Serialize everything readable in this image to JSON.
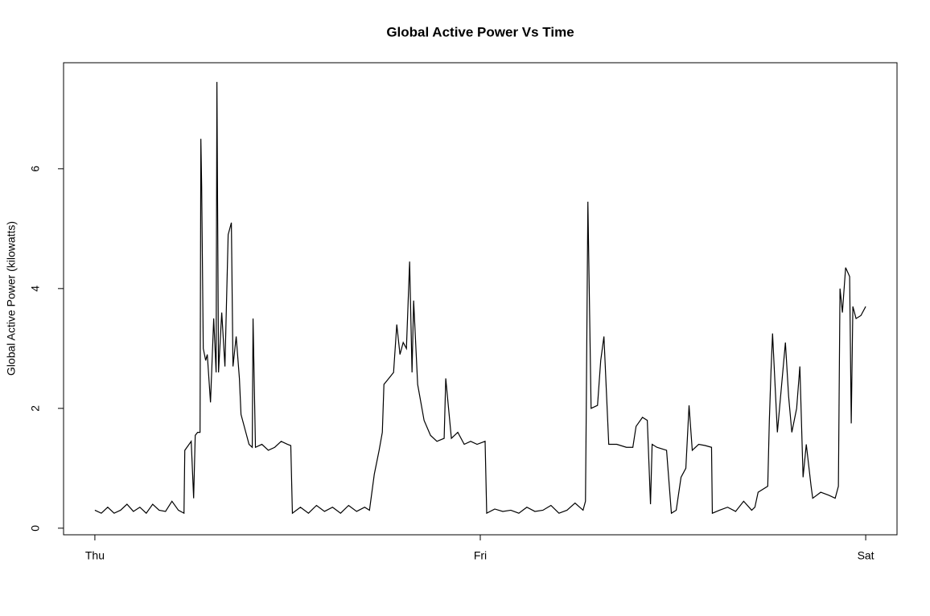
{
  "chart_data": {
    "type": "line",
    "title": "Global Active Power Vs Time",
    "y_label": "Global Active Power (kilowatts)",
    "color": "#000000",
    "xlim": [
      -1.95,
      49.95
    ],
    "xticks": [
      {
        "value": 0,
        "label": "Thu"
      },
      {
        "value": 24,
        "label": "Fri"
      },
      {
        "value": 48,
        "label": "Sat"
      }
    ],
    "ylim": [
      -0.11,
      7.77
    ],
    "yticks": [
      0,
      2,
      4,
      6
    ],
    "x": [
      0,
      0.4,
      0.8,
      1.2,
      1.6,
      2.0,
      2.4,
      2.8,
      3.2,
      3.6,
      4.0,
      4.4,
      4.8,
      5.2,
      5.55,
      5.6,
      6.0,
      6.15,
      6.25,
      6.4,
      6.55,
      6.6,
      6.65,
      6.75,
      6.9,
      7.0,
      7.2,
      7.4,
      7.55,
      7.6,
      7.7,
      7.9,
      8.1,
      8.3,
      8.5,
      8.6,
      8.8,
      9.0,
      9.1,
      9.4,
      9.6,
      9.8,
      9.85,
      10.0,
      10.4,
      10.8,
      11.2,
      11.6,
      12.0,
      12.2,
      12.3,
      12.8,
      13.3,
      13.8,
      14.3,
      14.8,
      15.3,
      15.8,
      16.3,
      16.8,
      17.1,
      17.4,
      17.7,
      17.9,
      18.0,
      18.3,
      18.6,
      18.8,
      19.0,
      19.2,
      19.4,
      19.6,
      19.75,
      19.85,
      20.1,
      20.5,
      20.9,
      21.3,
      21.75,
      21.85,
      22.2,
      22.6,
      23.0,
      23.4,
      23.8,
      24.3,
      24.4,
      24.9,
      25.4,
      25.9,
      26.4,
      26.9,
      27.4,
      27.9,
      28.4,
      28.9,
      29.4,
      29.9,
      30.4,
      30.55,
      30.6,
      30.7,
      30.9,
      31.3,
      31.5,
      31.7,
      32.0,
      32.5,
      33.1,
      33.5,
      33.7,
      34.1,
      34.4,
      34.6,
      34.7,
      35.0,
      35.6,
      35.9,
      36.2,
      36.5,
      36.8,
      37.0,
      37.2,
      37.6,
      38.0,
      38.4,
      38.45,
      38.9,
      39.4,
      39.9,
      40.4,
      40.9,
      41.1,
      41.3,
      41.9,
      42.0,
      42.1,
      42.2,
      42.5,
      42.8,
      43.0,
      43.2,
      43.4,
      43.7,
      43.9,
      44.1,
      44.3,
      44.6,
      44.7,
      45.2,
      45.7,
      46.1,
      46.3,
      46.4,
      46.55,
      46.75,
      47.0,
      47.1,
      47.2,
      47.4,
      47.7,
      48.0
    ],
    "values": [
      0.3,
      0.25,
      0.35,
      0.25,
      0.3,
      0.4,
      0.28,
      0.35,
      0.25,
      0.4,
      0.3,
      0.28,
      0.45,
      0.3,
      0.25,
      1.3,
      1.45,
      0.5,
      1.55,
      1.6,
      1.6,
      6.5,
      5.7,
      3.0,
      2.8,
      2.9,
      2.1,
      3.5,
      2.6,
      7.45,
      2.6,
      3.6,
      2.7,
      4.9,
      5.1,
      2.7,
      3.2,
      2.5,
      1.9,
      1.6,
      1.4,
      1.35,
      3.5,
      1.35,
      1.4,
      1.3,
      1.35,
      1.45,
      1.4,
      1.38,
      0.25,
      0.35,
      0.25,
      0.38,
      0.28,
      0.35,
      0.25,
      0.38,
      0.28,
      0.35,
      0.3,
      0.9,
      1.3,
      1.6,
      2.4,
      2.5,
      2.6,
      3.4,
      2.9,
      3.1,
      3.0,
      4.45,
      2.6,
      3.8,
      2.4,
      1.8,
      1.55,
      1.45,
      1.5,
      2.5,
      1.5,
      1.6,
      1.4,
      1.45,
      1.4,
      1.45,
      0.25,
      0.32,
      0.28,
      0.3,
      0.25,
      0.35,
      0.28,
      0.3,
      0.38,
      0.25,
      0.3,
      0.42,
      0.3,
      0.45,
      2.0,
      5.45,
      2.0,
      2.05,
      2.8,
      3.2,
      1.4,
      1.4,
      1.35,
      1.35,
      1.7,
      1.85,
      1.8,
      0.4,
      1.4,
      1.35,
      1.3,
      0.25,
      0.3,
      0.85,
      1.0,
      2.05,
      1.3,
      1.4,
      1.38,
      1.35,
      0.25,
      0.3,
      0.35,
      0.28,
      0.45,
      0.3,
      0.35,
      0.6,
      0.7,
      1.8,
      2.6,
      3.25,
      1.6,
      2.5,
      3.1,
      2.2,
      1.6,
      2.0,
      2.7,
      0.85,
      1.4,
      0.7,
      0.5,
      0.6,
      0.55,
      0.5,
      0.7,
      4.0,
      3.6,
      4.35,
      4.2,
      1.75,
      3.7,
      3.5,
      3.55,
      3.7
    ]
  }
}
